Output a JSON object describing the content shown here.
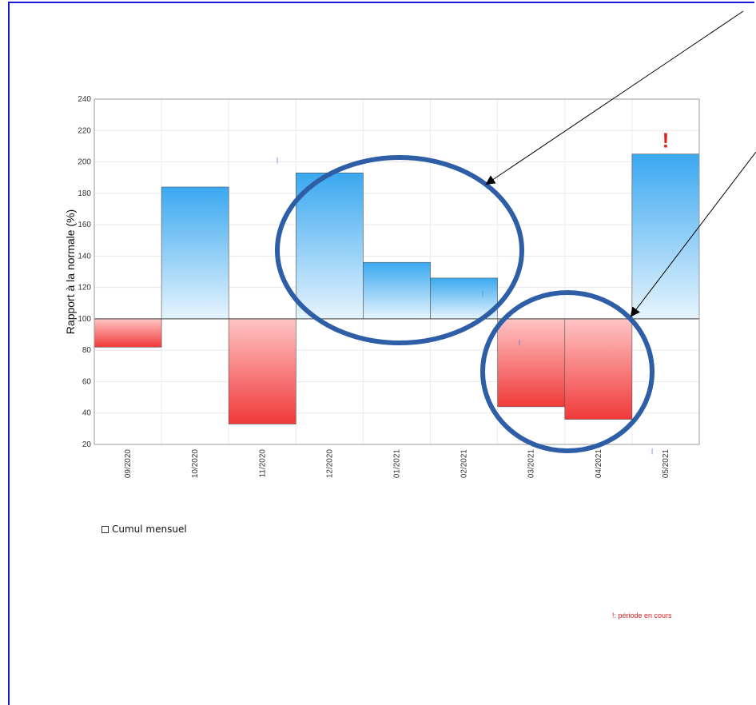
{
  "chart_data": {
    "type": "bar",
    "ylabel": "Rapport à la normale (%)",
    "xlabel": "",
    "ylim": [
      20,
      240
    ],
    "yticks": [
      20,
      40,
      60,
      80,
      100,
      120,
      140,
      160,
      180,
      200,
      220,
      240
    ],
    "baseline": 100,
    "grid": true,
    "categories": [
      "09/2020",
      "10/2020",
      "11/2020",
      "12/2020",
      "01/2021",
      "02/2021",
      "03/2021",
      "04/2021",
      "05/2021"
    ],
    "values": [
      82,
      184,
      33,
      193,
      136,
      126,
      44,
      36,
      205
    ],
    "current_period_marker": "!",
    "current_period_category": "05/2021",
    "colors": {
      "above": "#3aa8f0",
      "below": "#f04040"
    }
  },
  "legend": {
    "label": "Cumul mensuel"
  },
  "footnote": "!: période en cours"
}
